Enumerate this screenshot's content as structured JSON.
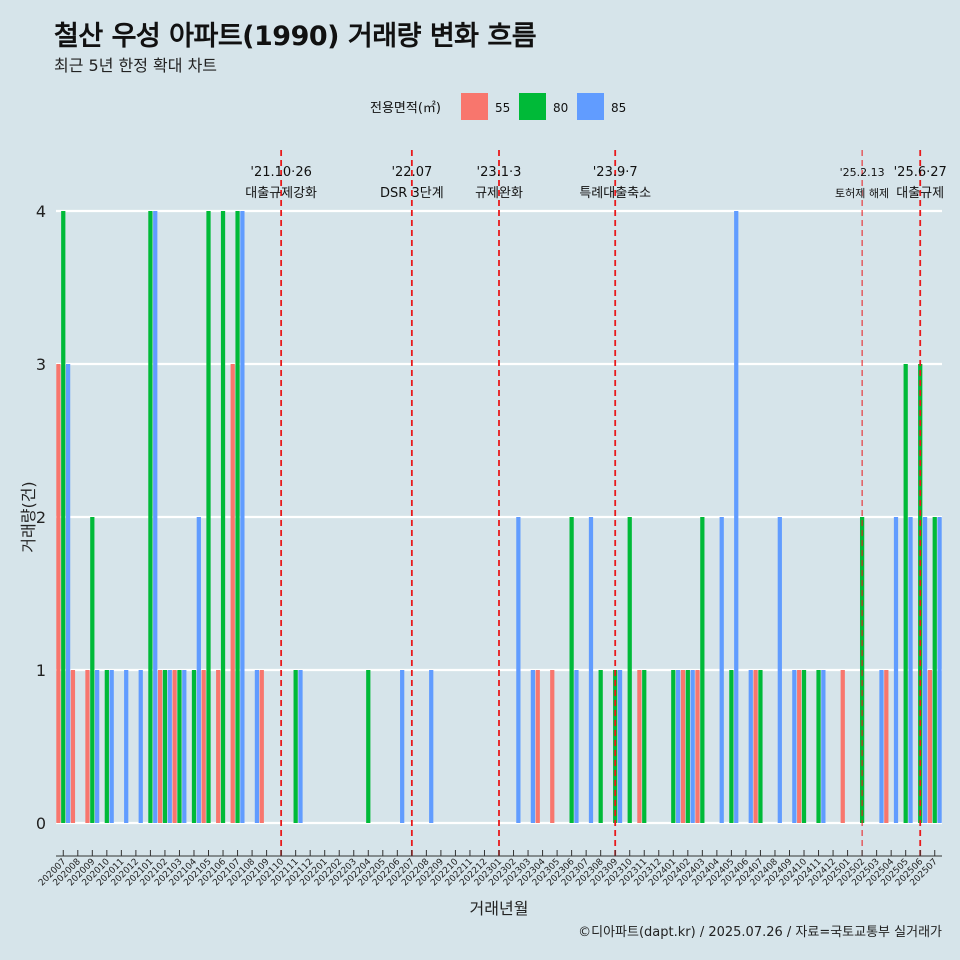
{
  "header": {
    "title": "철산 우성 아파트(1990) 거래량 변화 흐름",
    "subtitle": "최근 5년 한정 확대 차트"
  },
  "caption": "©디아파트(dapt.kr) / 2025.07.26 / 자료=국토교통부 실거래가",
  "colors": {
    "55": "#f8766d",
    "80": "#00ba38",
    "85": "#619cff",
    "event_line": "#e8191b"
  },
  "chart_data": {
    "type": "bar",
    "title": "철산 우성 아파트(1990) 거래량 변화 흐름",
    "subtitle": "최근 5년 한정 확대 차트",
    "xlabel": "거래년월",
    "ylabel": "거래량(건)",
    "ylim": [
      0,
      4
    ],
    "yticks": [
      0,
      1,
      2,
      3,
      4
    ],
    "grid": true,
    "legend_title": "전용면적(㎡)",
    "legend_position": "top",
    "categories": [
      "202007",
      "202008",
      "202009",
      "202010",
      "202011",
      "202012",
      "202101",
      "202102",
      "202103",
      "202104",
      "202105",
      "202106",
      "202107",
      "202108",
      "202109",
      "202110",
      "202111",
      "202112",
      "202201",
      "202202",
      "202203",
      "202204",
      "202205",
      "202206",
      "202207",
      "202208",
      "202209",
      "202210",
      "202211",
      "202212",
      "202301",
      "202302",
      "202303",
      "202304",
      "202305",
      "202306",
      "202307",
      "202308",
      "202309",
      "202310",
      "202311",
      "202312",
      "202401",
      "202402",
      "202403",
      "202404",
      "202405",
      "202406",
      "202407",
      "202408",
      "202409",
      "202410",
      "202411",
      "202412",
      "202501",
      "202502",
      "202503",
      "202504",
      "202505",
      "202506",
      "202507"
    ],
    "series": [
      {
        "name": "55",
        "values": [
          3,
          1,
          1,
          0,
          0,
          0,
          0,
          1,
          1,
          0,
          1,
          1,
          3,
          0,
          1,
          0,
          0,
          0,
          0,
          0,
          0,
          0,
          0,
          0,
          0,
          0,
          0,
          0,
          0,
          0,
          0,
          0,
          0,
          1,
          1,
          0,
          0,
          0,
          0,
          0,
          1,
          0,
          0,
          1,
          1,
          0,
          0,
          0,
          1,
          0,
          0,
          1,
          0,
          0,
          1,
          0,
          0,
          1,
          0,
          0,
          1
        ]
      },
      {
        "name": "80",
        "values": [
          4,
          0,
          2,
          1,
          0,
          0,
          4,
          1,
          1,
          1,
          4,
          4,
          4,
          0,
          0,
          0,
          1,
          0,
          0,
          0,
          0,
          1,
          0,
          0,
          0,
          0,
          0,
          0,
          0,
          0,
          0,
          0,
          0,
          0,
          0,
          2,
          0,
          1,
          1,
          2,
          1,
          0,
          1,
          1,
          2,
          0,
          1,
          0,
          1,
          0,
          0,
          1,
          1,
          0,
          0,
          2,
          0,
          0,
          3,
          3,
          2
        ]
      },
      {
        "name": "85",
        "values": [
          3,
          0,
          1,
          1,
          1,
          1,
          4,
          1,
          1,
          2,
          0,
          0,
          4,
          1,
          0,
          0,
          1,
          0,
          0,
          0,
          0,
          0,
          0,
          1,
          0,
          1,
          0,
          0,
          0,
          0,
          0,
          2,
          1,
          0,
          0,
          1,
          2,
          0,
          1,
          0,
          0,
          0,
          1,
          1,
          0,
          2,
          4,
          1,
          0,
          2,
          1,
          0,
          1,
          0,
          0,
          0,
          1,
          2,
          2,
          2,
          2
        ]
      }
    ],
    "annotations": [
      {
        "x": "202110",
        "date": "'21.10·26",
        "label": "대출규제강화"
      },
      {
        "x": "202207",
        "date": "'22.07",
        "label": "DSR 3단계"
      },
      {
        "x": "202301",
        "date": "'23.1·3",
        "label": "규제완화"
      },
      {
        "x": "202309",
        "date": "'23.9·7",
        "label": "특례대출축소"
      },
      {
        "x": "202502",
        "date": "'25.2.13",
        "label": "토허제 해제",
        "style": "thin"
      },
      {
        "x": "202506",
        "date": "'25.6·27",
        "label": "대출규제"
      }
    ]
  }
}
